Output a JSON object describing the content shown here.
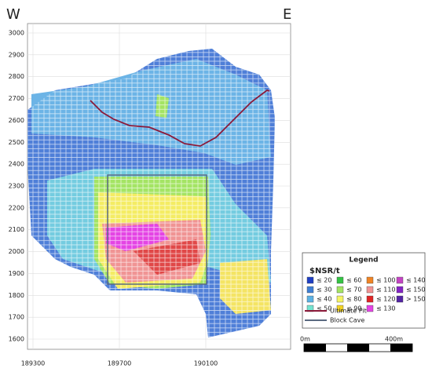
{
  "section": {
    "west": "W",
    "east": "E",
    "yticks": [
      3000,
      2900,
      2800,
      2700,
      2600,
      2500,
      2400,
      2300,
      2200,
      2100,
      2000,
      1900,
      1800,
      1700,
      1600
    ],
    "xticks": [
      189300,
      189700,
      190100
    ]
  },
  "legend": {
    "title": "Legend",
    "unit": "$NSR/t",
    "items": [
      {
        "label": "≤ 20",
        "color": "#1f3fc4"
      },
      {
        "label": "≤ 30",
        "color": "#3f7fd4"
      },
      {
        "label": "≤ 40",
        "color": "#5cb2e4"
      },
      {
        "label": "≤ 50",
        "color": "#74e4d0"
      },
      {
        "label": "≤ 60",
        "color": "#34c444"
      },
      {
        "label": "≤ 70",
        "color": "#a4e464"
      },
      {
        "label": "≤ 80",
        "color": "#f4f464"
      },
      {
        "label": "≤ 90",
        "color": "#f4d424"
      },
      {
        "label": "≤ 100",
        "color": "#f08424"
      },
      {
        "label": "≤ 110",
        "color": "#f09494"
      },
      {
        "label": "≤ 120",
        "color": "#e02424"
      },
      {
        "label": "≤ 130",
        "color": "#e444e4"
      },
      {
        "label": "≤ 140",
        "color": "#c444c4"
      },
      {
        "label": "≤ 150",
        "color": "#8424c4"
      },
      {
        "label": "> 150",
        "color": "#5424a4"
      }
    ],
    "lines": [
      {
        "label": "Ultimate Pit",
        "color": "#8b1a3a"
      },
      {
        "label": "Block Cave",
        "color": "#5a6a80"
      }
    ]
  },
  "scale": {
    "start": "0m",
    "end": "400m"
  }
}
